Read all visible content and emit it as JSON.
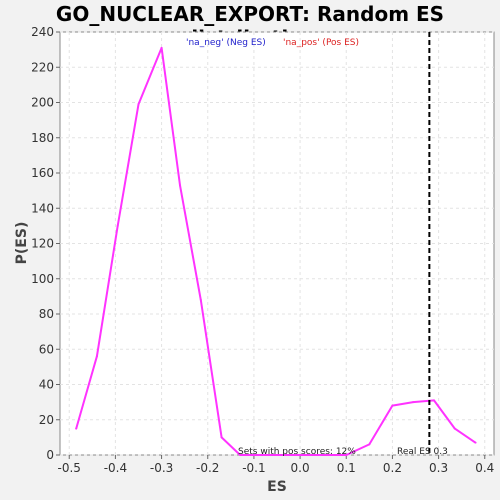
{
  "chart_data": {
    "type": "line",
    "title": "GO_NUCLEAR_EXPORT: Random ES distribution",
    "xlabel": "ES",
    "ylabel": "P(ES)",
    "xlim": [
      -0.52,
      0.42
    ],
    "ylim": [
      0,
      240
    ],
    "xticks": [
      -0.5,
      -0.4,
      -0.3,
      -0.2,
      -0.1,
      0.0,
      0.1,
      0.2,
      0.3,
      0.4
    ],
    "xtick_labels": [
      "-0.5",
      "-0.4",
      "-0.3",
      "-0.2",
      "-0.1",
      "0.0",
      "0.1",
      "0.2",
      "0.3",
      "0.4"
    ],
    "yticks": [
      0,
      20,
      40,
      60,
      80,
      100,
      120,
      140,
      160,
      180,
      200,
      220,
      240
    ],
    "grid": true,
    "legend": [
      {
        "label": "'na_neg' (Neg ES)",
        "color": "#2222cc"
      },
      {
        "label": "'na_pos' (Pos ES)",
        "color": "#dd2222"
      }
    ],
    "series": [
      {
        "color": "#ff33ff",
        "x": [
          -0.485,
          -0.44,
          -0.395,
          -0.35,
          -0.3,
          -0.26,
          -0.215,
          -0.17,
          -0.13,
          -0.085,
          -0.04,
          0.0,
          0.05,
          0.1,
          0.15,
          0.2,
          0.245,
          0.29,
          0.335,
          0.38
        ],
        "y": [
          15,
          56,
          130,
          199,
          231,
          153,
          88,
          10,
          0,
          0,
          0,
          0,
          0,
          0,
          6,
          28,
          30,
          31,
          15,
          7
        ]
      }
    ],
    "real_es": {
      "x": 0.28,
      "label": "Real ES 0.3"
    },
    "annotation": "Sets with pos scores: 12%"
  }
}
